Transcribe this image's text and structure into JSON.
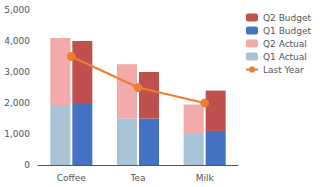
{
  "chart_data": {
    "type": "bar",
    "categories": [
      "Coffee",
      "Tea",
      "Milk"
    ],
    "series": [
      {
        "name": "Q1 Actual",
        "color": "#A9C4D8",
        "values": [
          1900,
          1500,
          1000
        ],
        "stacked": "Actual"
      },
      {
        "name": "Q2 Actual",
        "color": "#F2AAAA",
        "values": [
          2200,
          1750,
          950
        ],
        "stacked": "Actual"
      },
      {
        "name": "Q1 Budget",
        "color": "#4472C4",
        "values": [
          2000,
          1500,
          1100
        ],
        "stacked": "Budget"
      },
      {
        "name": "Q2 Budget",
        "color": "#C0504D",
        "values": [
          2000,
          1500,
          1300
        ],
        "stacked": "Budget"
      },
      {
        "name": "Last Year",
        "type": "line",
        "marker": "circle",
        "color": "#ED7D31",
        "values": [
          3500,
          2500,
          2000
        ]
      }
    ],
    "ylim": [
      0,
      5000
    ],
    "yticks": [
      0,
      1000,
      2000,
      3000,
      4000,
      5000
    ],
    "grid": false,
    "legend": "upper right"
  }
}
